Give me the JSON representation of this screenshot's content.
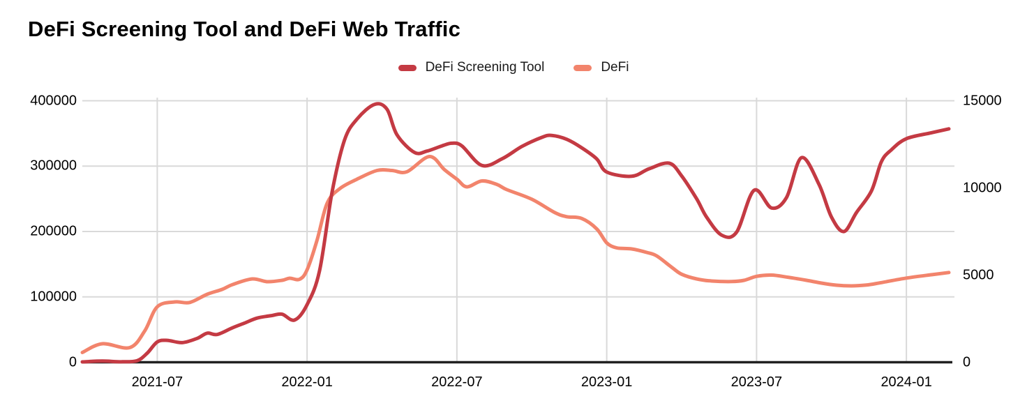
{
  "title": "DeFi Screening Tool and DeFi Web Traffic",
  "legend": [
    {
      "label": "DeFi Screening Tool",
      "color": "#c43a43"
    },
    {
      "label": "DeFi",
      "color": "#f2846c"
    }
  ],
  "colors": {
    "grid": "#d9d9d9",
    "axis": "#212121",
    "text": "#000000",
    "series_screening_tool": "#c43a43",
    "series_defi": "#f2846c"
  },
  "chart_data": {
    "type": "line",
    "title": "DeFi Screening Tool and DeFi Web Traffic",
    "grid": true,
    "legend_position": "top-center",
    "x_axis": {
      "unit": "months since 2021-04",
      "start_month": "2021-04",
      "end_month": "2024-03",
      "domain": [
        0,
        34.84
      ],
      "ticks": [
        {
          "pos": 3,
          "label": "2021-07"
        },
        {
          "pos": 9,
          "label": "2022-01"
        },
        {
          "pos": 15,
          "label": "2022-07"
        },
        {
          "pos": 21,
          "label": "2023-01"
        },
        {
          "pos": 27,
          "label": "2023-07"
        },
        {
          "pos": 33,
          "label": "2024-01"
        }
      ]
    },
    "y_left": {
      "min": 0,
      "max": 400000,
      "ticks": [
        0,
        100000,
        200000,
        300000,
        400000
      ],
      "series": "DeFi Screening Tool"
    },
    "y_right": {
      "min": 0,
      "max": 15000,
      "ticks": [
        0,
        5000,
        10000,
        15000
      ],
      "series": "DeFi"
    },
    "series": [
      {
        "name": "DeFi",
        "axis": "right",
        "color": "#f2846c",
        "points": [
          [
            0,
            560
          ],
          [
            0.8,
            1060
          ],
          [
            1.9,
            840
          ],
          [
            2.5,
            1800
          ],
          [
            3,
            3180
          ],
          [
            3.7,
            3460
          ],
          [
            4.3,
            3430
          ],
          [
            5,
            3900
          ],
          [
            5.6,
            4180
          ],
          [
            6,
            4450
          ],
          [
            6.8,
            4780
          ],
          [
            7.4,
            4620
          ],
          [
            8,
            4700
          ],
          [
            8.3,
            4820
          ],
          [
            8.7,
            4760
          ],
          [
            9,
            5300
          ],
          [
            9.4,
            7000
          ],
          [
            9.8,
            9110
          ],
          [
            10.3,
            9950
          ],
          [
            11,
            10500
          ],
          [
            11.8,
            11000
          ],
          [
            12.4,
            11000
          ],
          [
            13,
            10930
          ],
          [
            13.9,
            11800
          ],
          [
            14.5,
            11050
          ],
          [
            15,
            10500
          ],
          [
            15.4,
            10060
          ],
          [
            16,
            10400
          ],
          [
            16.6,
            10200
          ],
          [
            17,
            9900
          ],
          [
            18,
            9350
          ],
          [
            18.9,
            8600
          ],
          [
            19.4,
            8350
          ],
          [
            20,
            8250
          ],
          [
            20.6,
            7650
          ],
          [
            21,
            6850
          ],
          [
            21.4,
            6560
          ],
          [
            22,
            6500
          ],
          [
            22.6,
            6300
          ],
          [
            23,
            6100
          ],
          [
            23.6,
            5450
          ],
          [
            24,
            5050
          ],
          [
            24.6,
            4780
          ],
          [
            25.2,
            4660
          ],
          [
            26,
            4630
          ],
          [
            26.5,
            4700
          ],
          [
            27,
            4930
          ],
          [
            27.6,
            5000
          ],
          [
            28.2,
            4890
          ],
          [
            29,
            4700
          ],
          [
            29.6,
            4540
          ],
          [
            30.2,
            4420
          ],
          [
            30.8,
            4380
          ],
          [
            31.4,
            4430
          ],
          [
            32,
            4570
          ],
          [
            33,
            4830
          ],
          [
            34,
            5020
          ],
          [
            34.7,
            5150
          ]
        ]
      },
      {
        "name": "DeFi Screening Tool",
        "axis": "left",
        "color": "#c43a43",
        "points": [
          [
            0,
            500
          ],
          [
            0.8,
            1800
          ],
          [
            1.6,
            700
          ],
          [
            2.2,
            2500
          ],
          [
            2.6,
            14000
          ],
          [
            3,
            31000
          ],
          [
            3.4,
            33500
          ],
          [
            4,
            30000
          ],
          [
            4.6,
            36500
          ],
          [
            5,
            44500
          ],
          [
            5.4,
            42500
          ],
          [
            6,
            52500
          ],
          [
            6.5,
            60000
          ],
          [
            7,
            67500
          ],
          [
            7.6,
            71500
          ],
          [
            8,
            73500
          ],
          [
            8.5,
            64500
          ],
          [
            9,
            88000
          ],
          [
            9.5,
            140000
          ],
          [
            10,
            260000
          ],
          [
            10.5,
            340000
          ],
          [
            11,
            372000
          ],
          [
            11.7,
            394500
          ],
          [
            12.2,
            387000
          ],
          [
            12.6,
            348000
          ],
          [
            13.3,
            321000
          ],
          [
            13.8,
            323000
          ],
          [
            14.4,
            331000
          ],
          [
            14.8,
            335000
          ],
          [
            15.2,
            331000
          ],
          [
            16,
            301000
          ],
          [
            16.8,
            311000
          ],
          [
            17.6,
            330000
          ],
          [
            18.4,
            344000
          ],
          [
            18.8,
            347000
          ],
          [
            19.4,
            341000
          ],
          [
            20,
            328000
          ],
          [
            20.6,
            311000
          ],
          [
            21,
            291000
          ],
          [
            22,
            284500
          ],
          [
            22.7,
            296000
          ],
          [
            23.5,
            304500
          ],
          [
            24,
            285000
          ],
          [
            24.6,
            250000
          ],
          [
            25,
            222000
          ],
          [
            25.6,
            194500
          ],
          [
            26.2,
            199000
          ],
          [
            26.9,
            263000
          ],
          [
            27.6,
            236000
          ],
          [
            28.2,
            252000
          ],
          [
            28.8,
            313000
          ],
          [
            29.5,
            272000
          ],
          [
            30,
            222000
          ],
          [
            30.5,
            200000
          ],
          [
            31,
            229000
          ],
          [
            31.6,
            262000
          ],
          [
            32,
            307000
          ],
          [
            32.4,
            325000
          ],
          [
            33,
            342000
          ],
          [
            34,
            351000
          ],
          [
            34.7,
            357000
          ]
        ]
      }
    ]
  }
}
